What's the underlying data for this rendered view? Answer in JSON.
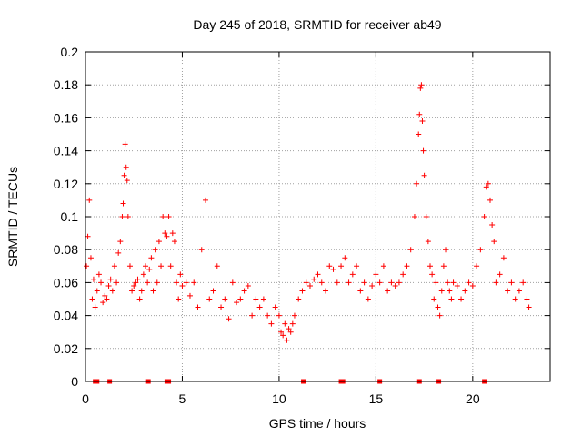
{
  "chart_data": {
    "type": "scatter",
    "title": "Day 245 of 2018, SRMTID for receiver ab49",
    "xlabel": "GPS time / hours",
    "ylabel": "SRMTID / TECUs",
    "xlim": [
      0,
      24
    ],
    "ylim": [
      0,
      0.2
    ],
    "x_ticks": [
      0,
      5,
      10,
      15,
      20
    ],
    "x_tick_labels": [
      "0",
      "5",
      "10",
      "15",
      "20"
    ],
    "y_ticks": [
      0,
      0.02,
      0.04,
      0.06,
      0.08,
      0.1,
      0.12,
      0.14,
      0.16,
      0.18,
      0.2
    ],
    "y_tick_labels": [
      "0",
      "0.02",
      "0.04",
      "0.06",
      "0.08",
      "0.1",
      "0.12",
      "0.14",
      "0.16",
      "0.18",
      "0.2"
    ],
    "grid": true,
    "marker": "+",
    "color": "#ff0000",
    "zero_markers_x": [
      0.5,
      0.6,
      1.25,
      3.25,
      4.2,
      4.3,
      11.25,
      13.2,
      13.3,
      15.2,
      17.25,
      18.25,
      20.6
    ],
    "series": [
      {
        "name": "SRMTID",
        "x": [
          0.05,
          0.12,
          0.2,
          0.28,
          0.35,
          0.42,
          0.5,
          0.6,
          0.7,
          0.8,
          0.9,
          1.0,
          1.1,
          1.2,
          1.3,
          1.4,
          1.5,
          1.6,
          1.7,
          1.8,
          1.9,
          1.95,
          2.0,
          2.05,
          2.1,
          2.15,
          2.2,
          2.3,
          2.4,
          2.5,
          2.6,
          2.7,
          2.8,
          2.9,
          3.0,
          3.1,
          3.2,
          3.3,
          3.4,
          3.5,
          3.6,
          3.7,
          3.8,
          3.9,
          4.0,
          4.1,
          4.2,
          4.3,
          4.4,
          4.5,
          4.6,
          4.7,
          4.8,
          4.9,
          5.0,
          5.2,
          5.4,
          5.6,
          5.8,
          6.0,
          6.2,
          6.4,
          6.6,
          6.8,
          7.0,
          7.2,
          7.4,
          7.6,
          7.8,
          8.0,
          8.2,
          8.4,
          8.6,
          8.8,
          9.0,
          9.2,
          9.4,
          9.6,
          9.8,
          10.0,
          10.1,
          10.2,
          10.3,
          10.4,
          10.5,
          10.6,
          10.7,
          10.8,
          11.0,
          11.2,
          11.4,
          11.6,
          11.8,
          12.0,
          12.2,
          12.4,
          12.6,
          12.8,
          13.0,
          13.2,
          13.4,
          13.6,
          13.8,
          14.0,
          14.2,
          14.4,
          14.6,
          14.8,
          15.0,
          15.2,
          15.4,
          15.6,
          15.8,
          16.0,
          16.2,
          16.4,
          16.6,
          16.8,
          17.0,
          17.1,
          17.2,
          17.25,
          17.3,
          17.35,
          17.4,
          17.45,
          17.5,
          17.6,
          17.7,
          17.8,
          17.9,
          18.0,
          18.1,
          18.2,
          18.3,
          18.4,
          18.5,
          18.6,
          18.7,
          18.8,
          18.9,
          19.0,
          19.2,
          19.4,
          19.6,
          19.8,
          20.0,
          20.2,
          20.4,
          20.6,
          20.7,
          20.8,
          20.9,
          21.0,
          21.1,
          21.2,
          21.4,
          21.6,
          21.8,
          22.0,
          22.2,
          22.4,
          22.6,
          22.8,
          22.9
        ],
        "y": [
          0.07,
          0.088,
          0.11,
          0.075,
          0.05,
          0.062,
          0.045,
          0.055,
          0.065,
          0.06,
          0.048,
          0.052,
          0.05,
          0.058,
          0.062,
          0.055,
          0.07,
          0.06,
          0.078,
          0.085,
          0.1,
          0.108,
          0.125,
          0.144,
          0.13,
          0.122,
          0.1,
          0.07,
          0.055,
          0.058,
          0.06,
          0.062,
          0.05,
          0.055,
          0.065,
          0.07,
          0.06,
          0.068,
          0.075,
          0.055,
          0.08,
          0.06,
          0.085,
          0.07,
          0.1,
          0.09,
          0.088,
          0.1,
          0.07,
          0.09,
          0.085,
          0.06,
          0.05,
          0.065,
          0.058,
          0.06,
          0.052,
          0.06,
          0.045,
          0.08,
          0.11,
          0.05,
          0.055,
          0.07,
          0.045,
          0.05,
          0.038,
          0.06,
          0.048,
          0.05,
          0.055,
          0.058,
          0.04,
          0.05,
          0.045,
          0.05,
          0.04,
          0.035,
          0.045,
          0.04,
          0.03,
          0.028,
          0.035,
          0.025,
          0.032,
          0.03,
          0.035,
          0.04,
          0.05,
          0.055,
          0.06,
          0.058,
          0.062,
          0.065,
          0.06,
          0.055,
          0.07,
          0.068,
          0.06,
          0.07,
          0.075,
          0.06,
          0.065,
          0.07,
          0.055,
          0.06,
          0.05,
          0.058,
          0.065,
          0.06,
          0.07,
          0.055,
          0.06,
          0.058,
          0.06,
          0.065,
          0.07,
          0.08,
          0.1,
          0.12,
          0.15,
          0.162,
          0.178,
          0.18,
          0.158,
          0.14,
          0.125,
          0.1,
          0.085,
          0.07,
          0.065,
          0.05,
          0.06,
          0.045,
          0.04,
          0.055,
          0.07,
          0.08,
          0.06,
          0.055,
          0.05,
          0.06,
          0.058,
          0.05,
          0.055,
          0.06,
          0.058,
          0.07,
          0.08,
          0.1,
          0.118,
          0.12,
          0.11,
          0.095,
          0.085,
          0.06,
          0.065,
          0.075,
          0.055,
          0.06,
          0.05,
          0.055,
          0.06,
          0.05,
          0.045
        ]
      }
    ]
  }
}
